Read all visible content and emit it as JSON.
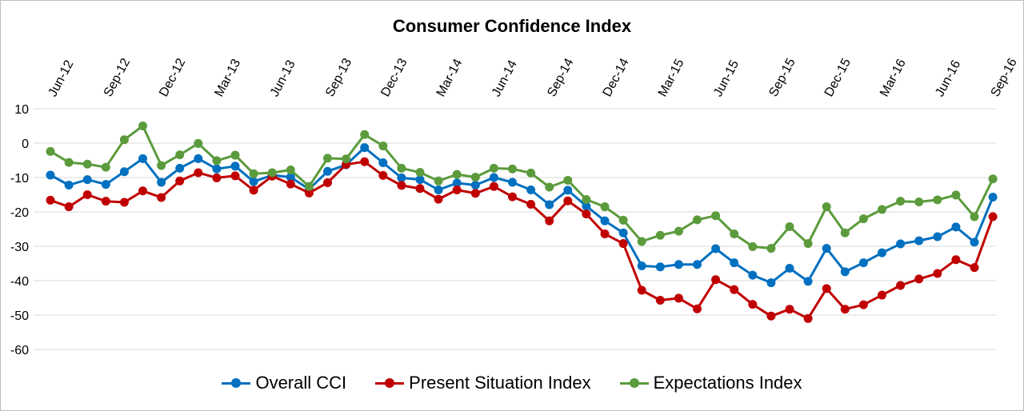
{
  "chart_data": {
    "type": "line",
    "title": "Consumer Confidence Index",
    "xlabel": "",
    "ylabel": "",
    "ylim": [
      -60,
      10
    ],
    "yticks": [
      10,
      0,
      -10,
      -20,
      -30,
      -40,
      -50,
      -60
    ],
    "grid": "horizontal",
    "legend_position": "bottom",
    "x_tick_labels": [
      "Jun-12",
      "Sep-12",
      "Dec-12",
      "Mar-13",
      "Jun-13",
      "Sep-13",
      "Dec-13",
      "Mar-14",
      "Jun-14",
      "Sep-14",
      "Dec-14",
      "Mar-15",
      "Jun-15",
      "Sep-15",
      "Dec-15",
      "Mar-16",
      "Jun-16",
      "Sep-16"
    ],
    "x": [
      "Jun-12",
      "Jul-12",
      "Aug-12",
      "Sep-12",
      "Oct-12",
      "Nov-12",
      "Dec-12",
      "Jan-13",
      "Feb-13",
      "Mar-13",
      "Apr-13",
      "May-13",
      "Jun-13",
      "Jul-13",
      "Aug-13",
      "Sep-13",
      "Oct-13",
      "Nov-13",
      "Dec-13",
      "Jan-14",
      "Feb-14",
      "Mar-14",
      "Apr-14",
      "May-14",
      "Jun-14",
      "Jul-14",
      "Aug-14",
      "Sep-14",
      "Oct-14",
      "Nov-14",
      "Dec-14",
      "Jan-15",
      "Feb-15",
      "Mar-15",
      "Apr-15",
      "May-15",
      "Jun-15",
      "Jul-15",
      "Aug-15",
      "Sep-15",
      "Oct-15",
      "Nov-15",
      "Dec-15",
      "Jan-16",
      "Feb-16",
      "Mar-16",
      "Apr-16",
      "May-16",
      "Jun-16",
      "Jul-16",
      "Aug-16",
      "Sep-16"
    ],
    "series": [
      {
        "name": "Overall CCI",
        "color": "#0070c0",
        "values": [
          -9.3,
          -12.2,
          -10.6,
          -12,
          -8.3,
          -4.5,
          -11.4,
          -7.3,
          -4.5,
          -7.5,
          -6.7,
          -11.2,
          -9.3,
          -9.9,
          -13.4,
          -8.2,
          -6.3,
          -1.3,
          -5.7,
          -10.1,
          -10.6,
          -13.6,
          -11.6,
          -12.2,
          -10,
          -11.4,
          -13.6,
          -17.9,
          -13.7,
          -18.3,
          -22.6,
          -26.1,
          -35.7,
          -36,
          -35.3,
          -35.3,
          -30.7,
          -34.8,
          -38.4,
          -40.6,
          -36.4,
          -40.2,
          -30.6,
          -37.4,
          -34.8,
          -31.9,
          -29.3,
          -28.4,
          -27.2,
          -24.4,
          -28.8,
          -15.7
        ]
      },
      {
        "name": "Present Situation Index",
        "color": "#c00000",
        "values": [
          -16.6,
          -18.5,
          -15,
          -16.9,
          -17.2,
          -13.9,
          -15.8,
          -11,
          -8.6,
          -10.1,
          -9.5,
          -13.7,
          -9.6,
          -11.9,
          -14.5,
          -11.5,
          -6.2,
          -5.4,
          -9.4,
          -12.3,
          -13.2,
          -16.3,
          -13.6,
          -14.6,
          -12.6,
          -15.6,
          -17.8,
          -22.6,
          -16.8,
          -20.6,
          -26.4,
          -29.2,
          -42.8,
          -45.7,
          -45.1,
          -48.2,
          -39.7,
          -42.6,
          -46.9,
          -50.3,
          -48.3,
          -51,
          -42.3,
          -48.3,
          -47,
          -44.2,
          -41.4,
          -39.5,
          -37.9,
          -33.9,
          -36.2,
          -21.4
        ]
      },
      {
        "name": "Expectations Index",
        "color": "#5b9b3c",
        "values": [
          -2.4,
          -5.6,
          -6.1,
          -7,
          1,
          5,
          -6.5,
          -3.4,
          -0.1,
          -5.1,
          -3.5,
          -8.9,
          -8.6,
          -7.8,
          -12.6,
          -4.4,
          -4.6,
          2.5,
          -0.8,
          -7.3,
          -8.5,
          -11,
          -9.1,
          -9.9,
          -7.3,
          -7.5,
          -8.7,
          -12.8,
          -10.8,
          -16.4,
          -18.5,
          -22.4,
          -28.6,
          -26.8,
          -25.6,
          -22.3,
          -21.1,
          -26.4,
          -30.1,
          -30.6,
          -24.3,
          -29.2,
          -18.5,
          -26.1,
          -22,
          -19.3,
          -16.9,
          -17.1,
          -16.5,
          -15.1,
          -21.4,
          -10.4
        ]
      }
    ]
  }
}
